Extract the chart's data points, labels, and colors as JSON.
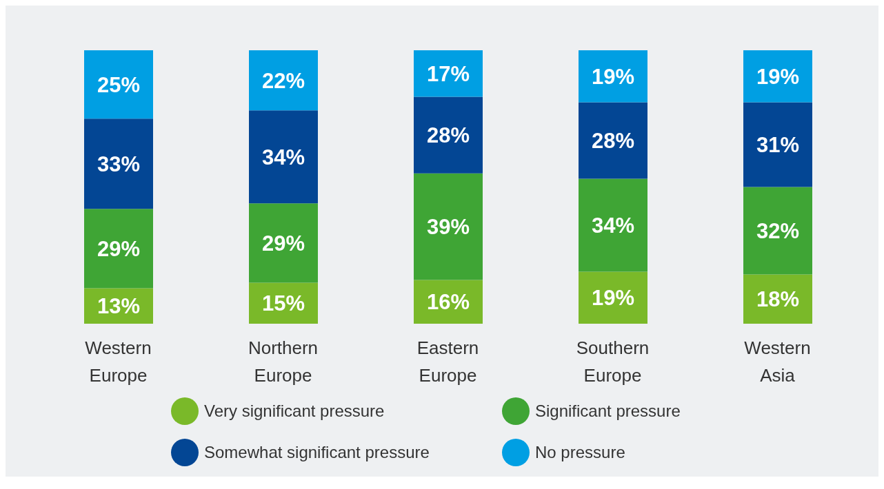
{
  "chart_data": {
    "type": "bar",
    "stacked": true,
    "categories": [
      "Western Europe",
      "Northern Europe",
      "Eastern Europe",
      "Southern Europe",
      "Western Asia"
    ],
    "series": [
      {
        "name": "Very significant pressure",
        "color": "#7ab929",
        "values": [
          13,
          15,
          16,
          19,
          18
        ],
        "value_labels": [
          "13%",
          "15%",
          "16%",
          "19%",
          "18%"
        ]
      },
      {
        "name": "Significant pressure",
        "color": "#3fa535",
        "values": [
          29,
          29,
          39,
          34,
          32
        ],
        "value_labels": [
          "29%",
          "29%",
          "39%",
          "34%",
          "32%"
        ]
      },
      {
        "name": "Somewhat significant pressure",
        "color": "#034694",
        "values": [
          33,
          34,
          28,
          28,
          31
        ],
        "value_labels": [
          "33%",
          "34%",
          "28%",
          "28%",
          "31%"
        ]
      },
      {
        "name": "No pressure",
        "color": "#009fe3",
        "values": [
          25,
          22,
          17,
          19,
          19
        ],
        "value_labels": [
          "25%",
          "22%",
          "17%",
          "19%",
          "19%"
        ]
      }
    ],
    "legend": "bottom"
  }
}
